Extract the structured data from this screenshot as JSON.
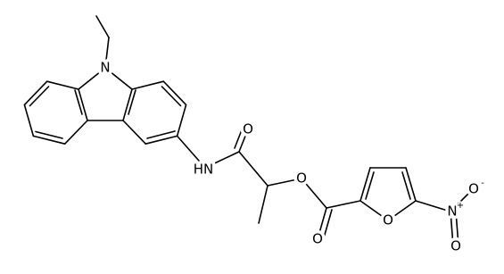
{
  "atoms": [
    {
      "label": "N"
    },
    {
      "label": "HN"
    },
    {
      "label": "O"
    },
    {
      "label": "O"
    },
    {
      "label": "O"
    },
    {
      "label": "O"
    },
    {
      "label": "N",
      "charge": "+"
    },
    {
      "label": "O",
      "charge": "-"
    },
    {
      "label": "O"
    }
  ]
}
